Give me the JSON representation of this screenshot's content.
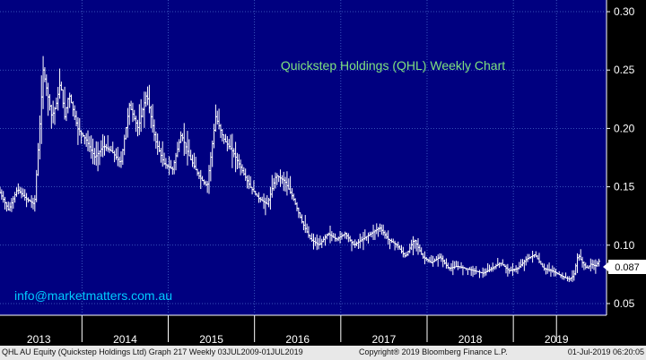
{
  "chart_data": {
    "type": "line",
    "style": "bar (OHLC)",
    "title": "Quickstep Holdings (QHL) Weekly Chart",
    "annotation": "info@marketmatters.com.au",
    "last_price_label": "0.087",
    "ylim": [
      0.04,
      0.31
    ],
    "y_ticks": [
      "0.30",
      "0.25",
      "0.20",
      "0.15",
      "0.10",
      "0.05"
    ],
    "y_tick_values": [
      0.3,
      0.25,
      0.2,
      0.15,
      0.1,
      0.05
    ],
    "x_range": [
      2012.55,
      2019.58
    ],
    "x_labels": [
      "2013",
      "2014",
      "2015",
      "2016",
      "2017",
      "2018",
      "2019"
    ],
    "x_label_positions": [
      2013.0,
      2014.0,
      2015.0,
      2016.0,
      2017.0,
      2018.0,
      2019.0
    ],
    "year_boundaries": [
      2013.5,
      2014.5,
      2015.5,
      2016.5,
      2017.5,
      2018.5,
      2019.0
    ],
    "grid": true,
    "colors": {
      "background": "#000080",
      "bars": "#ffffff",
      "title": "#7fe27f",
      "annotation": "#00ccff",
      "grid": "#4a6acc",
      "axis_text": "#ffffff",
      "footer_bg": "#e8e8e8"
    },
    "series": [
      {
        "x": [
          2012.55,
          2012.65,
          2012.75,
          2012.85,
          2012.95,
          2013.0,
          2013.05,
          2013.1,
          2013.15,
          2013.2,
          2013.25,
          2013.3,
          2013.35,
          2013.45,
          2013.55,
          2013.65,
          2013.75,
          2013.85,
          2013.95,
          2014.05,
          2014.15,
          2014.25,
          2014.35,
          2014.45,
          2014.55,
          2014.65,
          2014.75,
          2014.85,
          2014.95,
          2015.05,
          2015.15,
          2015.25,
          2015.35,
          2015.45,
          2015.55,
          2015.65,
          2015.75,
          2015.85,
          2015.95,
          2016.05,
          2016.15,
          2016.25,
          2016.35,
          2016.45,
          2016.55,
          2016.65,
          2016.75,
          2016.85,
          2016.95,
          2017.05,
          2017.15,
          2017.25,
          2017.35,
          2017.45,
          2017.55,
          2017.65,
          2017.75,
          2017.85,
          2017.95,
          2018.05,
          2018.15,
          2018.25,
          2018.35,
          2018.45,
          2018.55,
          2018.65,
          2018.75,
          2018.85,
          2018.95,
          2019.0,
          2019.05,
          2019.1,
          2019.15,
          2019.2,
          2019.25,
          2019.3,
          2019.35,
          2019.4,
          2019.45,
          2019.5
        ],
        "y": [
          0.145,
          0.13,
          0.148,
          0.14,
          0.135,
          0.19,
          0.25,
          0.23,
          0.21,
          0.22,
          0.24,
          0.21,
          0.23,
          0.2,
          0.19,
          0.175,
          0.185,
          0.18,
          0.17,
          0.22,
          0.2,
          0.23,
          0.19,
          0.17,
          0.165,
          0.195,
          0.175,
          0.16,
          0.15,
          0.21,
          0.19,
          0.18,
          0.165,
          0.15,
          0.14,
          0.135,
          0.16,
          0.155,
          0.14,
          0.12,
          0.105,
          0.1,
          0.11,
          0.105,
          0.11,
          0.1,
          0.105,
          0.11,
          0.115,
          0.105,
          0.1,
          0.09,
          0.105,
          0.09,
          0.085,
          0.09,
          0.08,
          0.082,
          0.08,
          0.078,
          0.076,
          0.08,
          0.085,
          0.078,
          0.08,
          0.088,
          0.092,
          0.08,
          0.078,
          0.076,
          0.074,
          0.072,
          0.071,
          0.074,
          0.092,
          0.085,
          0.08,
          0.084,
          0.082,
          0.087
        ]
      }
    ]
  },
  "footer": {
    "left": "QHL AU Equity (Quickstep Holdings Ltd) Graph 217  Weekly 03JUL2009-01JUL2019",
    "center": "Copyright® 2019 Bloomberg Finance L.P.",
    "right": "01-Jul-2019 06:20:05"
  }
}
